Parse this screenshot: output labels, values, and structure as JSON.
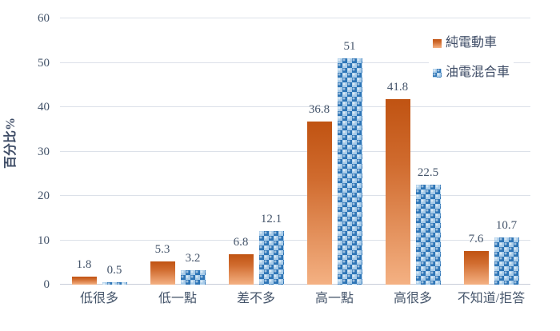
{
  "chart_data": {
    "type": "bar",
    "title": "",
    "ylabel": "百分比%",
    "ylim": [
      0,
      60
    ],
    "yticks": [
      0,
      10,
      20,
      30,
      40,
      50,
      60
    ],
    "grid": true,
    "legend_position": "top-right",
    "categories": [
      "低很多",
      "低一點",
      "差不多",
      "高一點",
      "高很多",
      "不知道/拒答"
    ],
    "series": [
      {
        "name": "純電動車",
        "values": [
          1.8,
          5.3,
          6.8,
          36.8,
          41.8,
          7.6
        ],
        "labels": [
          "1.8",
          "5.3",
          "6.8",
          "36.8",
          "41.8",
          "7.6"
        ],
        "fill": "orange-gradient",
        "colors": {
          "top": "#C05312",
          "bottom": "#F4B183"
        }
      },
      {
        "name": "油電混合車",
        "values": [
          0.5,
          3.2,
          12.1,
          51,
          22.5,
          10.7
        ],
        "labels": [
          "0.5",
          "3.2",
          "12.1",
          "51",
          "22.5",
          "10.7"
        ],
        "fill": "blue-checker-pattern",
        "colors": {
          "dark": "#2E75B6",
          "light": "#9DC3E6"
        }
      }
    ]
  },
  "style": {
    "text_color": "#44546A",
    "gridline_color": "#DCE1E9",
    "axis_line_color": "#C7CDD8",
    "background": "#FFFFFF"
  }
}
